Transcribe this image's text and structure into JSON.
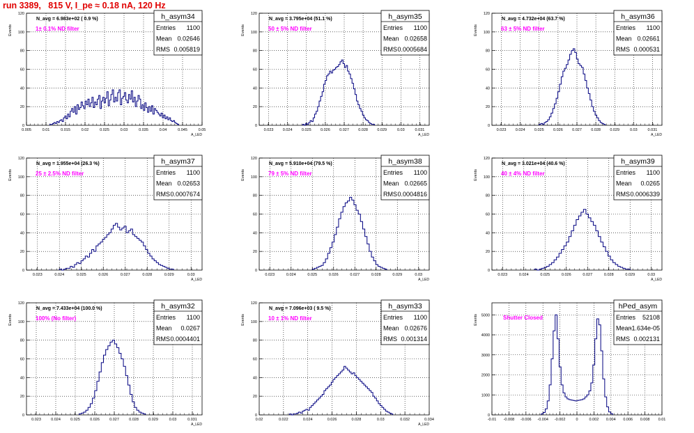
{
  "page": {
    "title": "run 3389,   815 V, I_pe ≈ 0.18 nA, 120 Hz"
  },
  "style": {
    "histogram_color": "#000080",
    "title_color": "#e00000",
    "filter_label_color": "#ff00ff"
  },
  "chart_data": [
    {
      "type": "bar",
      "name": "h_asym34",
      "stats": {
        "entries": "1100",
        "mean": "0.02646",
        "rms": "0.005819"
      },
      "navg": "N_avg = 6.983e+02 ( 0.9 %)",
      "filter": "1± 0.1% ND filter",
      "ylabel": "Events",
      "xlabel": "A_LED",
      "xlim": [
        0.005,
        0.05
      ],
      "ylim": [
        0,
        120
      ],
      "xticks": [
        "0.005",
        "0.01",
        "0.015",
        "0.02",
        "0.025",
        "0.03",
        "0.035",
        "0.04",
        "0.045",
        "0.05"
      ],
      "yticks": [
        "0",
        "20",
        "40",
        "60",
        "80",
        "100",
        "120"
      ],
      "bins": {
        "lo": 0.011,
        "hi": 0.044,
        "values": [
          1,
          1,
          2,
          3,
          2,
          4,
          3,
          5,
          6,
          4,
          8,
          10,
          7,
          12,
          9,
          15,
          18,
          14,
          20,
          12,
          22,
          17,
          19,
          25,
          21,
          18,
          26,
          22,
          28,
          20,
          24,
          30,
          19,
          25,
          22,
          28,
          32,
          18,
          26,
          30,
          24,
          29,
          36,
          21,
          27,
          33,
          38,
          25,
          30,
          26,
          35,
          38,
          22,
          29,
          31,
          35,
          27,
          24,
          33,
          28,
          37,
          25,
          30,
          20,
          26,
          32,
          28,
          18,
          22,
          16,
          24,
          19,
          14,
          20,
          15,
          21,
          12,
          18,
          16,
          14,
          12,
          10,
          13,
          8,
          11,
          7,
          9,
          6,
          8,
          5,
          4,
          5,
          3,
          2,
          1
        ]
      }
    },
    {
      "type": "bar",
      "name": "h_asym35",
      "stats": {
        "entries": "1100",
        "mean": "0.02658",
        "rms": "0.0005684"
      },
      "navg": "N_avg = 3.795e+04 (51.1 %)",
      "filter": "50 ± 5% ND filter",
      "ylabel": "Events",
      "xlabel": "A_LED",
      "xlim": [
        0.0225,
        0.0315
      ],
      "ylim": [
        0,
        120
      ],
      "xticks": [
        "0.023",
        "0.024",
        "0.025",
        "0.026",
        "0.027",
        "0.028",
        "0.029",
        "0.03",
        "0.031"
      ],
      "yticks": [
        "0",
        "20",
        "40",
        "60",
        "80",
        "100",
        "120"
      ],
      "bins": {
        "lo": 0.0248,
        "hi": 0.0286,
        "values": [
          1,
          0,
          2,
          1,
          3,
          5,
          4,
          8,
          12,
          15,
          20,
          26,
          31,
          36,
          44,
          48,
          53,
          55,
          58,
          56,
          59,
          60,
          62,
          63,
          65,
          68,
          70,
          66,
          62,
          64,
          58,
          55,
          50,
          45,
          39,
          33,
          26,
          22,
          18,
          15,
          11,
          8,
          6,
          5,
          3,
          2,
          1,
          1
        ]
      }
    },
    {
      "type": "bar",
      "name": "h_asym36",
      "stats": {
        "entries": "1100",
        "mean": "0.02661",
        "rms": "0.000531"
      },
      "navg": "N_avg = 4.732e+04 (63.7 %)",
      "filter": "63 ± 5% ND filter",
      "ylabel": "Events",
      "xlabel": "A_LED",
      "xlim": [
        0.0225,
        0.0315
      ],
      "ylim": [
        0,
        120
      ],
      "xticks": [
        "0.023",
        "0.024",
        "0.025",
        "0.026",
        "0.027",
        "0.028",
        "0.029",
        "0.03",
        "0.031"
      ],
      "yticks": [
        "0",
        "20",
        "40",
        "60",
        "80",
        "100",
        "120"
      ],
      "bins": {
        "lo": 0.025,
        "hi": 0.0285,
        "values": [
          1,
          2,
          1,
          3,
          4,
          6,
          9,
          13,
          18,
          23,
          29,
          36,
          44,
          52,
          58,
          61,
          65,
          70,
          76,
          80,
          82,
          78,
          71,
          66,
          64,
          62,
          55,
          48,
          40,
          34,
          27,
          20,
          15,
          11,
          8,
          5,
          3,
          2,
          1
        ]
      }
    },
    {
      "type": "bar",
      "name": "h_asym37",
      "stats": {
        "entries": "1100",
        "mean": "0.02653",
        "rms": "0.0007674"
      },
      "navg": "N_avg = 1.955e+04 (26.3 %)",
      "filter": "25 ± 2.5% ND filter",
      "ylabel": "Events",
      "xlabel": "A_LED",
      "xlim": [
        0.0225,
        0.0305
      ],
      "ylim": [
        0,
        120
      ],
      "xticks": [
        "0.023",
        "0.024",
        "0.025",
        "0.026",
        "0.027",
        "0.028",
        "0.029",
        "0.03"
      ],
      "yticks": [
        "0",
        "20",
        "40",
        "60",
        "80",
        "100",
        "120"
      ],
      "bins": {
        "lo": 0.024,
        "hi": 0.0292,
        "values": [
          1,
          0,
          1,
          2,
          2,
          4,
          3,
          6,
          8,
          7,
          10,
          12,
          15,
          14,
          18,
          22,
          20,
          26,
          28,
          30,
          33,
          35,
          38,
          40,
          44,
          48,
          50,
          46,
          43,
          45,
          47,
          40,
          42,
          44,
          38,
          36,
          34,
          32,
          30,
          26,
          22,
          18,
          15,
          12,
          10,
          8,
          6,
          5,
          4,
          3,
          2,
          1,
          1
        ]
      }
    },
    {
      "type": "bar",
      "name": "h_asym38",
      "stats": {
        "entries": "1100",
        "mean": "0.02665",
        "rms": "0.0004816"
      },
      "navg": "N_avg = 5.910e+04 (79.5 %)",
      "filter": "79 ± 5% ND filter",
      "ylabel": "Events",
      "xlabel": "A_LED",
      "xlim": [
        0.0225,
        0.0305
      ],
      "ylim": [
        0,
        120
      ],
      "xticks": [
        "0.023",
        "0.024",
        "0.025",
        "0.026",
        "0.027",
        "0.028",
        "0.029",
        "0.03"
      ],
      "yticks": [
        "0",
        "20",
        "40",
        "60",
        "80",
        "100",
        "120"
      ],
      "bins": {
        "lo": 0.025,
        "hi": 0.0285,
        "values": [
          1,
          2,
          3,
          4,
          5,
          8,
          12,
          18,
          24,
          30,
          38,
          46,
          55,
          62,
          68,
          72,
          74,
          78,
          75,
          70,
          64,
          60,
          52,
          44,
          36,
          28,
          20,
          14,
          10,
          6,
          4,
          3,
          2,
          1
        ]
      }
    },
    {
      "type": "bar",
      "name": "h_asym39",
      "stats": {
        "entries": "1100",
        "mean": "0.0265",
        "rms": "0.0006339"
      },
      "navg": "N_avg = 3.021e+04 (40.6 %)",
      "filter": "40 ± 4% ND filter",
      "ylabel": "Events",
      "xlabel": "A_LED",
      "xlim": [
        0.0225,
        0.0305
      ],
      "ylim": [
        0,
        120
      ],
      "xticks": [
        "0.023",
        "0.024",
        "0.025",
        "0.026",
        "0.027",
        "0.028",
        "0.029",
        "0.03"
      ],
      "yticks": [
        "0",
        "20",
        "40",
        "60",
        "80",
        "100",
        "120"
      ],
      "bins": {
        "lo": 0.0245,
        "hi": 0.029,
        "values": [
          1,
          0,
          1,
          2,
          3,
          4,
          6,
          8,
          11,
          14,
          18,
          22,
          26,
          30,
          36,
          42,
          48,
          54,
          58,
          62,
          65,
          60,
          56,
          52,
          48,
          42,
          36,
          30,
          25,
          20,
          15,
          11,
          8,
          6,
          4,
          3,
          2,
          1,
          1
        ]
      }
    },
    {
      "type": "bar",
      "name": "h_asym32",
      "stats": {
        "entries": "1100",
        "mean": "0.0267",
        "rms": "0.0004401"
      },
      "navg": "N_avg = 7.433e+04 (100.0 %)",
      "filter": "100% (No filter)",
      "ylabel": "Events",
      "xlabel": "A_LED",
      "xlim": [
        0.0225,
        0.0315
      ],
      "ylim": [
        0,
        120
      ],
      "xticks": [
        "0.023",
        "0.024",
        "0.025",
        "0.026",
        "0.027",
        "0.028",
        "0.029",
        "0.03",
        "0.031"
      ],
      "yticks": [
        "0",
        "20",
        "40",
        "60",
        "80",
        "100",
        "120"
      ],
      "bins": {
        "lo": 0.0252,
        "hi": 0.0286,
        "values": [
          1,
          2,
          3,
          5,
          8,
          12,
          18,
          26,
          36,
          46,
          56,
          64,
          70,
          74,
          78,
          80,
          76,
          72,
          66,
          60,
          52,
          42,
          32,
          22,
          14,
          8,
          5,
          3,
          2,
          1
        ]
      }
    },
    {
      "type": "bar",
      "name": "h_asym33",
      "stats": {
        "entries": "1100",
        "mean": "0.02676",
        "rms": "0.001314"
      },
      "navg": "N_avg = 7.096e+03 ( 9.5 %)",
      "filter": "10 ± 1% ND filter",
      "ylabel": "Events",
      "xlabel": "A_LED",
      "xlim": [
        0.02,
        0.034
      ],
      "ylim": [
        0,
        120
      ],
      "xticks": [
        "0.02",
        "0.022",
        "0.024",
        "0.026",
        "0.028",
        "0.03",
        "0.032",
        "0.034"
      ],
      "yticks": [
        "0",
        "20",
        "40",
        "60",
        "80",
        "100",
        "120"
      ],
      "bins": {
        "lo": 0.0225,
        "hi": 0.031,
        "values": [
          1,
          0,
          1,
          1,
          2,
          3,
          2,
          4,
          5,
          6,
          5,
          8,
          10,
          12,
          14,
          16,
          18,
          20,
          22,
          26,
          28,
          30,
          32,
          35,
          38,
          40,
          42,
          44,
          46,
          48,
          52,
          50,
          48,
          46,
          44,
          45,
          42,
          40,
          38,
          36,
          34,
          32,
          30,
          28,
          26,
          24,
          20,
          18,
          15,
          12,
          10,
          8,
          6,
          4,
          3,
          2,
          1
        ]
      }
    },
    {
      "type": "bar",
      "name": "hPed_asym",
      "stats": {
        "entries": "52108",
        "mean": "-1.634e-05",
        "rms": "0.002131"
      },
      "navg": "",
      "filter": "Shutter Closed",
      "ylabel": "Events",
      "xlabel": "",
      "xlim": [
        -0.01,
        0.01
      ],
      "ylim": [
        0,
        5600
      ],
      "xticks": [
        "-0.01",
        "-0.008",
        "-0.006",
        "-0.004",
        "-0.002",
        "0",
        "0.002",
        "0.004",
        "0.006",
        "0.008",
        "0.01"
      ],
      "yticks": [
        "0",
        "1000",
        "2000",
        "3000",
        "4000",
        "5000"
      ],
      "bins": {
        "lo": -0.0042,
        "hi": 0.0042,
        "values": [
          50,
          120,
          300,
          700,
          1500,
          2800,
          4200,
          5000,
          3800,
          2400,
          1500,
          1100,
          900,
          800,
          760,
          740,
          720,
          700,
          720,
          740,
          760,
          800,
          900,
          1000,
          1200,
          1600,
          2500,
          3800,
          4800,
          4500,
          3200,
          1800,
          900,
          400,
          150,
          60
        ]
      }
    }
  ]
}
